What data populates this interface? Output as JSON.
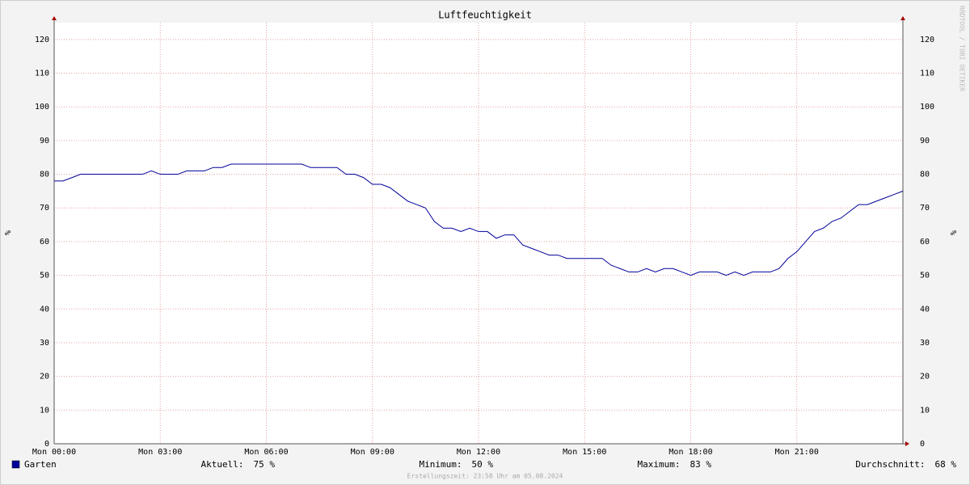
{
  "chart_data": {
    "type": "line",
    "title": "Luftfeuchtigkeit",
    "y_label": "%",
    "y2_label": "%",
    "watermark": "RRDTOOL / TOBI OETIKER",
    "xlim": [
      0,
      24
    ],
    "ylim": [
      0,
      125
    ],
    "xticks": [
      {
        "value": 0,
        "label": "Mon 00:00"
      },
      {
        "value": 3,
        "label": "Mon 03:00"
      },
      {
        "value": 6,
        "label": "Mon 06:00"
      },
      {
        "value": 9,
        "label": "Mon 09:00"
      },
      {
        "value": 12,
        "label": "Mon 12:00"
      },
      {
        "value": 15,
        "label": "Mon 15:00"
      },
      {
        "value": 18,
        "label": "Mon 18:00"
      },
      {
        "value": 21,
        "label": "Mon 21:00"
      }
    ],
    "yticks": [
      0,
      10,
      20,
      30,
      40,
      50,
      60,
      70,
      80,
      90,
      100,
      110,
      120
    ],
    "grid": true,
    "x": [
      0,
      0.25,
      0.5,
      0.75,
      1,
      1.25,
      1.5,
      1.75,
      2,
      2.25,
      2.5,
      2.75,
      3,
      3.25,
      3.5,
      3.75,
      4,
      4.25,
      4.5,
      4.75,
      5,
      5.25,
      5.5,
      5.75,
      6,
      6.25,
      6.5,
      6.75,
      7,
      7.25,
      7.5,
      7.75,
      8,
      8.25,
      8.5,
      8.75,
      9,
      9.25,
      9.5,
      9.75,
      10,
      10.25,
      10.5,
      10.75,
      11,
      11.25,
      11.5,
      11.75,
      12,
      12.25,
      12.5,
      12.75,
      13,
      13.25,
      13.5,
      13.75,
      14,
      14.25,
      14.5,
      14.75,
      15,
      15.25,
      15.5,
      15.75,
      16,
      16.25,
      16.5,
      16.75,
      17,
      17.25,
      17.5,
      17.75,
      18,
      18.25,
      18.5,
      18.75,
      19,
      19.25,
      19.5,
      19.75,
      20,
      20.25,
      20.5,
      20.75,
      21,
      21.25,
      21.5,
      21.75,
      22,
      22.25,
      22.5,
      22.75,
      23,
      23.25,
      23.5,
      23.75,
      24
    ],
    "series": [
      {
        "name": "Garten",
        "color": "#000099",
        "values": [
          78,
          78,
          79,
          80,
          80,
          80,
          80,
          80,
          80,
          80,
          80,
          81,
          80,
          80,
          80,
          81,
          81,
          81,
          82,
          82,
          83,
          83,
          83,
          83,
          83,
          83,
          83,
          83,
          83,
          82,
          82,
          82,
          82,
          80,
          80,
          79,
          77,
          77,
          76,
          74,
          72,
          71,
          70,
          66,
          64,
          64,
          63,
          64,
          63,
          63,
          61,
          62,
          62,
          59,
          58,
          57,
          56,
          56,
          55,
          55,
          55,
          55,
          55,
          53,
          52,
          51,
          51,
          52,
          51,
          52,
          52,
          51,
          50,
          51,
          51,
          51,
          50,
          51,
          50,
          51,
          51,
          51,
          52,
          55,
          57,
          60,
          63,
          64,
          66,
          67,
          69,
          71,
          71,
          72,
          73,
          74,
          75
        ]
      }
    ],
    "stats": [
      {
        "label": "Aktuell:",
        "value": "75 %"
      },
      {
        "label": "Minimum:",
        "value": "50 %"
      },
      {
        "label": "Maximum:",
        "value": "83 %"
      },
      {
        "label": "Durchschnitt:",
        "value": "68 %"
      }
    ],
    "footer": "Erstellungszeit: 23:58 Uhr am 05.08.2024"
  }
}
